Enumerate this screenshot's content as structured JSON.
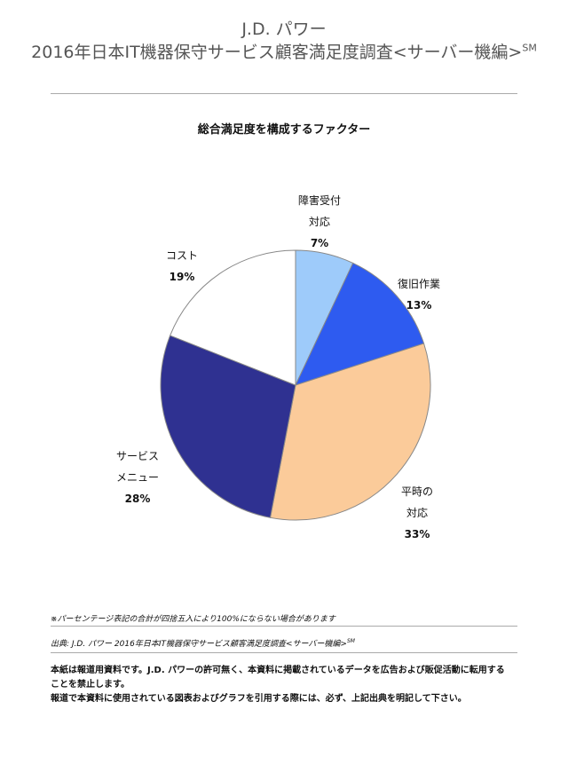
{
  "header": {
    "line1": "J.D. パワー",
    "line2": "2016年日本IT機器保守サービス顧客満足度調査<サーバー機編>",
    "line2_mark": "SM"
  },
  "chart_data": {
    "type": "pie",
    "title": "総合満足度を構成するファクター",
    "unit": "%",
    "start_angle_deg": 0,
    "direction": "clockwise",
    "slices": [
      {
        "label": "障害受付 対応",
        "label_lines": [
          "障害受付",
          "対応"
        ],
        "value": 7,
        "value_text": "7%",
        "color": "#9ECBFA"
      },
      {
        "label": "復旧作業",
        "label_lines": [
          "復旧作業"
        ],
        "value": 13,
        "value_text": "13%",
        "color": "#2E5BF0"
      },
      {
        "label": "平時の 対応",
        "label_lines": [
          "平時の",
          "対応"
        ],
        "value": 33,
        "value_text": "33%",
        "color": "#FBCB9A"
      },
      {
        "label": "サービス メニュー",
        "label_lines": [
          "サービス",
          "メニュー"
        ],
        "value": 28,
        "value_text": "28%",
        "color": "#2F3191"
      },
      {
        "label": "コスト",
        "label_lines": [
          "コスト"
        ],
        "value": 19,
        "value_text": "19%",
        "color": "#FFFFFF"
      }
    ]
  },
  "footnote": "※パーセンテージ表記の合計が四捨五入により100%にならない場合があります",
  "source": {
    "text": "出典: J.D. パワー 2016年日本IT機器保守サービス顧客満足度調査<サーバー機編>",
    "mark": "SM"
  },
  "disclaimer": {
    "para1": "本紙は報道用資料です。J.D. パワーの許可無く、本資料に掲載されているデータを広告および販促活動に転用することを禁止します。",
    "para2": "報道で本資料に使用されている図表およびグラフを引用する際には、必ず、上記出典を明記して下さい。"
  }
}
